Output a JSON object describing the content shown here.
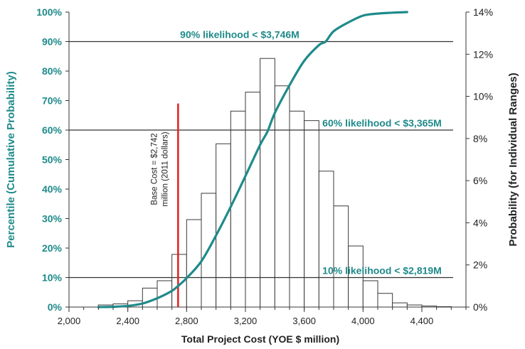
{
  "chart_data": {
    "type": "bar",
    "xlabel": "Total Project Cost (YOE $ million)",
    "ylabel_left": "Percentile (Cumulative Probability)",
    "ylabel_right": "Probability (for Individual Ranges)",
    "xlim": [
      2000,
      4700
    ],
    "x_ticks": [
      2000,
      2400,
      2800,
      3200,
      3600,
      4000,
      4400
    ],
    "x_tick_labels": [
      "2,000",
      "2,400",
      "2,800",
      "3,200",
      "3,600",
      "4,000",
      "4,400"
    ],
    "left_axis": {
      "ylim": [
        0,
        100
      ],
      "ticks": [
        0,
        10,
        20,
        30,
        40,
        50,
        60,
        70,
        80,
        90,
        100
      ],
      "tick_labels": [
        "0%",
        "10%",
        "20%",
        "30%",
        "40%",
        "50%",
        "60%",
        "70%",
        "80%",
        "90%",
        "100%"
      ]
    },
    "right_axis": {
      "ylim": [
        0,
        14
      ],
      "ticks": [
        0,
        2,
        4,
        6,
        8,
        10,
        12,
        14
      ],
      "tick_labels": [
        "0%",
        "2%",
        "4%",
        "6%",
        "8%",
        "10%",
        "12%",
        "14%"
      ]
    },
    "histogram": {
      "name": "Probability (for Individual Ranges)",
      "bin_width": 100,
      "bin_starts": [
        2200,
        2300,
        2400,
        2500,
        2600,
        2700,
        2800,
        2900,
        3000,
        3100,
        3200,
        3300,
        3400,
        3500,
        3600,
        3700,
        3800,
        3900,
        4000,
        4100,
        4200,
        4300,
        4400,
        4500
      ],
      "probability_pct": [
        0.1,
        0.15,
        0.3,
        0.9,
        1.25,
        2.5,
        4.15,
        5.4,
        7.75,
        9.3,
        10.2,
        11.8,
        10.5,
        9.3,
        8.85,
        6.45,
        4.8,
        2.9,
        1.25,
        0.65,
        0.2,
        0.1,
        0.05,
        0.02
      ]
    },
    "cumulative": {
      "name": "Percentile (Cumulative Probability)",
      "color": "#1f8a8a",
      "x": [
        2200,
        2300,
        2400,
        2500,
        2600,
        2700,
        2750,
        2800,
        2900,
        3000,
        3100,
        3200,
        3300,
        3350,
        3400,
        3500,
        3600,
        3700,
        3746,
        3800,
        3900,
        4000,
        4100,
        4200,
        4300
      ],
      "y": [
        0,
        0.1,
        0.4,
        1.2,
        3,
        5.5,
        7.5,
        9.8,
        15.5,
        24.3,
        34,
        44.4,
        55,
        59.5,
        65.8,
        75.2,
        83.5,
        88.8,
        90,
        93.5,
        96.5,
        98.8,
        99.5,
        99.8,
        100
      ]
    },
    "base_cost_line": {
      "x": 2742,
      "color": "#e0201c",
      "label": "Base Cost = $2,742 million (2011 dollars)",
      "label_lines": [
        "Base Cost = $2,742",
        "million (2011 dollars)"
      ]
    },
    "reference_lines": [
      {
        "percentile": 90,
        "label": "90% likelihood < $3,746M"
      },
      {
        "percentile": 60,
        "label": "60% likelihood < $3,365M"
      },
      {
        "percentile": 10,
        "label": "10% likelihood < $2,819M"
      }
    ],
    "grid": false,
    "legend": "none"
  }
}
